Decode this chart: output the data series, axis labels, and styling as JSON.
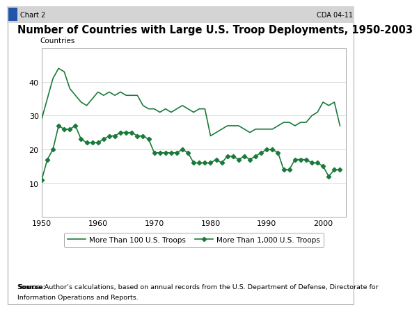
{
  "title": "Number of Countries with Large U.S. Troop Deployments, 1950-2003",
  "subtitle_left": "Countries",
  "header_left": "Chart 2",
  "header_right": "CDA 04-11",
  "ylim": [
    0,
    50
  ],
  "xlim": [
    1950,
    2004
  ],
  "yticks": [
    10,
    20,
    30,
    40
  ],
  "xticks": [
    1950,
    1960,
    1970,
    1980,
    1990,
    2000
  ],
  "line_color": "#1a7a3a",
  "source_bold": "Source:",
  "source_text": " Author’s calculations, based on annual records from the U.S. Department of Defense, Directorate for Information Operations and Reports.",
  "legend": [
    {
      "label": "More Than 100 U.S. Troops"
    },
    {
      "label": "More Than 1,000 U.S. Troops"
    }
  ],
  "series_100": {
    "years": [
      1950,
      1951,
      1952,
      1953,
      1954,
      1955,
      1956,
      1957,
      1958,
      1959,
      1960,
      1961,
      1962,
      1963,
      1964,
      1965,
      1966,
      1967,
      1968,
      1969,
      1970,
      1971,
      1972,
      1973,
      1974,
      1975,
      1976,
      1977,
      1978,
      1979,
      1980,
      1981,
      1982,
      1983,
      1984,
      1985,
      1986,
      1987,
      1988,
      1989,
      1990,
      1991,
      1992,
      1993,
      1994,
      1995,
      1996,
      1997,
      1998,
      1999,
      2000,
      2001,
      2002,
      2003
    ],
    "values": [
      29,
      35,
      41,
      44,
      43,
      38,
      36,
      34,
      33,
      35,
      37,
      36,
      37,
      36,
      37,
      36,
      36,
      36,
      33,
      32,
      32,
      31,
      32,
      31,
      32,
      33,
      32,
      31,
      32,
      32,
      24,
      25,
      26,
      27,
      27,
      27,
      26,
      25,
      26,
      26,
      26,
      26,
      27,
      28,
      28,
      27,
      28,
      28,
      30,
      31,
      34,
      33,
      34,
      27
    ]
  },
  "series_1000": {
    "years": [
      1950,
      1951,
      1952,
      1953,
      1954,
      1955,
      1956,
      1957,
      1958,
      1959,
      1960,
      1961,
      1962,
      1963,
      1964,
      1965,
      1966,
      1967,
      1968,
      1969,
      1970,
      1971,
      1972,
      1973,
      1974,
      1975,
      1976,
      1977,
      1978,
      1979,
      1980,
      1981,
      1982,
      1983,
      1984,
      1985,
      1986,
      1987,
      1988,
      1989,
      1990,
      1991,
      1992,
      1993,
      1994,
      1995,
      1996,
      1997,
      1998,
      1999,
      2000,
      2001,
      2002,
      2003
    ],
    "values": [
      11,
      17,
      20,
      27,
      26,
      26,
      27,
      23,
      22,
      22,
      22,
      23,
      24,
      24,
      25,
      25,
      25,
      24,
      24,
      23,
      19,
      19,
      19,
      19,
      19,
      20,
      19,
      16,
      16,
      16,
      16,
      17,
      16,
      18,
      18,
      17,
      18,
      17,
      18,
      19,
      20,
      20,
      19,
      14,
      14,
      17,
      17,
      17,
      16,
      16,
      15,
      12,
      14,
      14
    ]
  }
}
